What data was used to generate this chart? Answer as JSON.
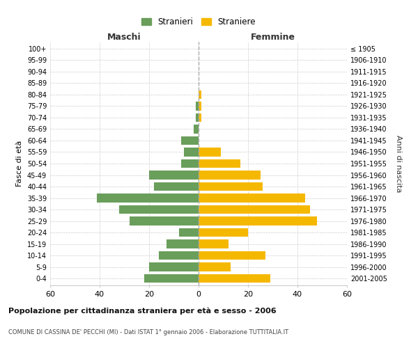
{
  "age_groups": [
    "100+",
    "95-99",
    "90-94",
    "85-89",
    "80-84",
    "75-79",
    "70-74",
    "65-69",
    "60-64",
    "55-59",
    "50-54",
    "45-49",
    "40-44",
    "35-39",
    "30-34",
    "25-29",
    "20-24",
    "15-19",
    "10-14",
    "5-9",
    "0-4"
  ],
  "birth_years": [
    "≤ 1905",
    "1906-1910",
    "1911-1915",
    "1916-1920",
    "1921-1925",
    "1926-1930",
    "1931-1935",
    "1936-1940",
    "1941-1945",
    "1946-1950",
    "1951-1955",
    "1956-1960",
    "1961-1965",
    "1966-1970",
    "1971-1975",
    "1976-1980",
    "1981-1985",
    "1986-1990",
    "1991-1995",
    "1996-2000",
    "2001-2005"
  ],
  "males": [
    0,
    0,
    0,
    0,
    0,
    1,
    1,
    2,
    7,
    6,
    7,
    20,
    18,
    41,
    32,
    28,
    8,
    13,
    16,
    20,
    22
  ],
  "females": [
    0,
    0,
    0,
    0,
    1,
    1,
    1,
    0,
    0,
    9,
    17,
    25,
    26,
    43,
    45,
    48,
    20,
    12,
    27,
    13,
    29
  ],
  "male_color": "#6a9e5b",
  "female_color": "#f5b800",
  "background_color": "#ffffff",
  "grid_color": "#cccccc",
  "xlim": 60,
  "title": "Popolazione per cittadinanza straniera per età e sesso - 2006",
  "subtitle": "COMUNE DI CASSINA DE' PECCHI (MI) - Dati ISTAT 1° gennaio 2006 - Elaborazione TUTTITALIA.IT",
  "ylabel_left": "Fasce di età",
  "ylabel_right": "Anni di nascita",
  "header_left": "Maschi",
  "header_right": "Femmine",
  "legend_male": "Stranieri",
  "legend_female": "Straniere"
}
